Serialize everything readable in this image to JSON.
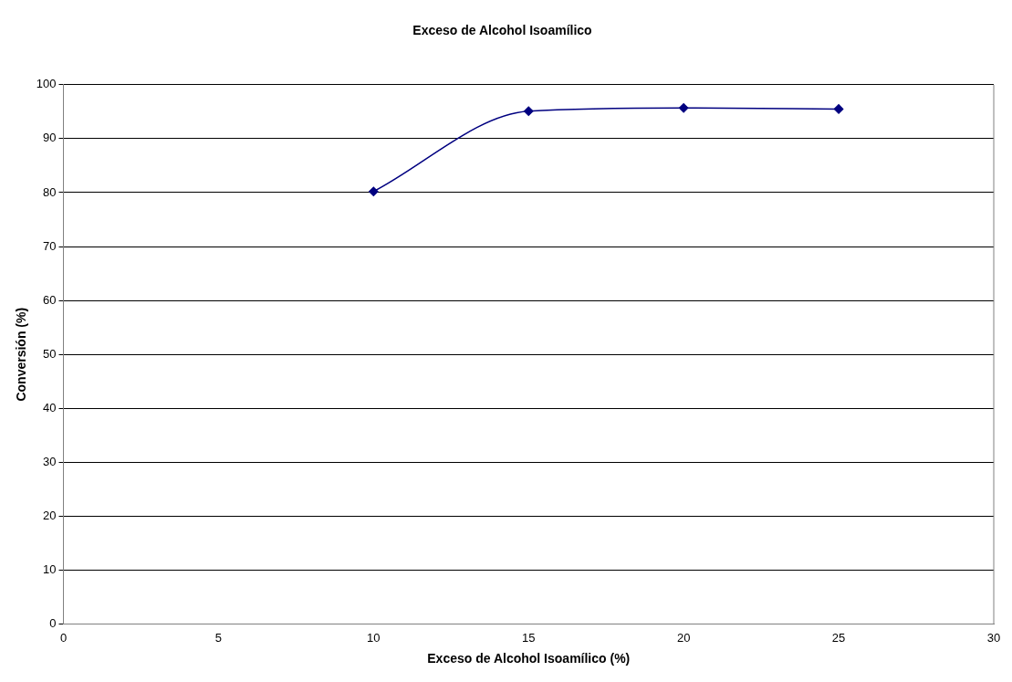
{
  "chart_data": {
    "type": "line",
    "title": "Exceso de Alcohol Isoamílico",
    "xlabel": "Exceso de Alcohol Isoamílico (%)",
    "ylabel": "Conversión (%)",
    "x": [
      10,
      15,
      20,
      25
    ],
    "series": [
      {
        "color": "#000080",
        "values": [
          80.2,
          95.1,
          95.7,
          95.5
        ]
      }
    ],
    "xlim": [
      0,
      30
    ],
    "xticks": [
      0,
      5,
      10,
      15,
      20,
      25,
      30
    ],
    "ylim": [
      0,
      100
    ],
    "yticks": [
      0,
      10,
      20,
      30,
      40,
      50,
      60,
      70,
      80,
      90,
      100
    ],
    "grid": "y",
    "marker": "diamond",
    "line_style": "solid",
    "legend": false
  }
}
